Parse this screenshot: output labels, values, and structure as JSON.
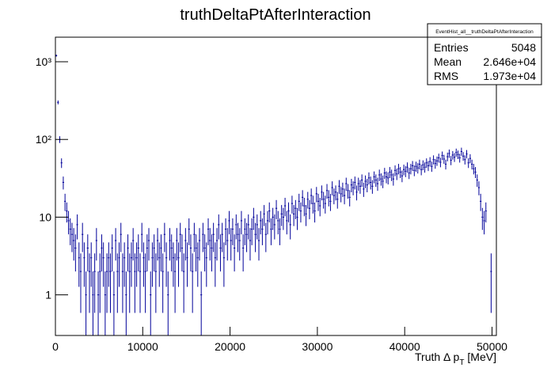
{
  "chart_data": {
    "type": "histogram",
    "title": "truthDeltaPtAfterInteraction",
    "x_label": [
      "Truth Δ p",
      "T",
      "[MeV]"
    ],
    "color": "#000099",
    "log_y": true,
    "errors": "sqrt",
    "xlim": [
      0,
      50500
    ],
    "ylim": [
      0.3,
      2070
    ],
    "xticks": [
      0,
      10000,
      20000,
      30000,
      40000,
      50000
    ],
    "yticks": [
      1,
      10,
      {
        "value": 100,
        "label": "10²"
      },
      {
        "value": 1000,
        "label": "10³"
      }
    ],
    "stats": {
      "title": "EventHist_all__truthDeltaPtAfterInteraction",
      "rows": [
        [
          "Entries",
          5048
        ],
        [
          "Mean",
          "2.646e+04"
        ],
        [
          "RMS",
          "1.973e+04"
        ]
      ]
    },
    "bins": [
      0,
      200,
      400,
      600,
      800,
      1000,
      1200,
      1400,
      1600,
      1800,
      2000,
      2200,
      2400,
      2600,
      2800,
      3000,
      3200,
      3400,
      3600,
      3800,
      4000,
      4200,
      4400,
      4600,
      4800,
      5000,
      5200,
      5400,
      5600,
      5800,
      6000,
      6200,
      6400,
      6600,
      6800,
      7000,
      7200,
      7400,
      7600,
      7800,
      8000,
      8200,
      8400,
      8600,
      8800,
      9000,
      9200,
      9400,
      9600,
      9800,
      10000,
      10200,
      10400,
      10600,
      10800,
      11000,
      11200,
      11400,
      11600,
      11800,
      12000,
      12200,
      12400,
      12600,
      12800,
      13000,
      13200,
      13400,
      13600,
      13800,
      14000,
      14200,
      14400,
      14600,
      14800,
      15000,
      15200,
      15400,
      15600,
      15800,
      16000,
      16200,
      16400,
      16600,
      16800,
      17000,
      17200,
      17400,
      17600,
      17800,
      18000,
      18200,
      18400,
      18600,
      18800,
      19000,
      19200,
      19400,
      19600,
      19800,
      20000,
      20200,
      20400,
      20600,
      20800,
      21000,
      21200,
      21400,
      21600,
      21800,
      22000,
      22200,
      22400,
      22600,
      22800,
      23000,
      23200,
      23400,
      23600,
      23800,
      24000,
      24200,
      24400,
      24600,
      24800,
      25000,
      25200,
      25400,
      25600,
      25800,
      26000,
      26200,
      26400,
      26600,
      26800,
      27000,
      27200,
      27400,
      27600,
      27800,
      28000,
      28200,
      28400,
      28600,
      28800,
      29000,
      29200,
      29400,
      29600,
      29800,
      30000,
      30200,
      30400,
      30600,
      30800,
      31000,
      31200,
      31400,
      31600,
      31800,
      32000,
      32200,
      32400,
      32600,
      32800,
      33000,
      33200,
      33400,
      33600,
      33800,
      34000,
      34200,
      34400,
      34600,
      34800,
      35000,
      35200,
      35400,
      35600,
      35800,
      36000,
      36200,
      36400,
      36600,
      36800,
      37000,
      37200,
      37400,
      37600,
      37800,
      38000,
      38200,
      38400,
      38600,
      38800,
      39000,
      39200,
      39400,
      39600,
      39800,
      40000,
      40200,
      40400,
      40600,
      40800,
      41000,
      41200,
      41400,
      41600,
      41800,
      42000,
      42200,
      42400,
      42600,
      42800,
      43000,
      43200,
      43400,
      43600,
      43800,
      44000,
      44200,
      44400,
      44600,
      44800,
      45000,
      45200,
      45400,
      45600,
      45800,
      46000,
      46200,
      46400,
      46600,
      46800,
      47000,
      47200,
      47400,
      47600,
      47800,
      48000,
      48200,
      48400,
      48600,
      48800,
      49000,
      49200,
      49400,
      49600,
      49800,
      50000
    ],
    "values": [
      1200,
      300,
      100,
      50,
      28,
      16,
      12,
      9,
      7,
      6,
      5,
      4,
      8,
      3,
      2,
      6,
      3,
      1,
      4,
      2,
      3,
      1,
      2,
      5,
      1,
      2,
      4,
      3,
      1,
      2,
      3,
      2,
      4,
      1,
      5,
      2,
      3,
      6,
      2,
      3,
      1,
      4,
      2,
      3,
      5,
      2,
      3,
      4,
      2,
      6,
      3,
      2,
      4,
      5,
      1,
      3,
      4,
      2,
      5,
      3,
      4,
      2,
      6,
      3,
      1,
      5,
      4,
      3,
      2,
      5,
      3,
      6,
      4,
      2,
      5,
      3,
      7,
      4,
      2,
      6,
      4,
      3,
      5,
      1,
      6,
      4,
      3,
      7,
      5,
      4,
      6,
      3,
      5,
      8,
      4,
      6,
      3,
      7,
      5,
      9,
      5,
      7,
      4,
      8,
      6,
      5,
      9,
      4,
      7,
      6,
      8,
      5,
      7,
      10,
      6,
      8,
      5,
      9,
      7,
      11,
      6,
      9,
      12,
      7,
      10,
      8,
      13,
      9,
      7,
      11,
      10,
      14,
      9,
      12,
      8,
      15,
      11,
      13,
      10,
      16,
      12,
      18,
      14,
      11,
      17,
      13,
      19,
      15,
      12,
      20,
      16,
      14,
      21,
      17,
      15,
      22,
      18,
      16,
      24,
      19,
      21,
      17,
      25,
      20,
      23,
      19,
      27,
      22,
      18,
      26,
      24,
      28,
      21,
      27,
      25,
      30,
      23,
      29,
      26,
      32,
      28,
      25,
      33,
      30,
      27,
      35,
      31,
      29,
      37,
      33,
      32,
      38,
      35,
      31,
      40,
      36,
      42,
      38,
      34,
      41,
      39,
      44,
      37,
      42,
      46,
      40,
      45,
      43,
      48,
      41,
      47,
      44,
      50,
      46,
      52,
      45,
      55,
      49,
      53,
      58,
      51,
      62,
      56,
      48,
      60,
      66,
      54,
      63,
      59,
      68,
      64,
      58,
      70,
      61,
      55,
      65,
      50,
      57,
      48,
      42,
      38,
      30,
      24,
      16,
      10,
      9,
      12,
      0,
      0,
      2
    ]
  }
}
